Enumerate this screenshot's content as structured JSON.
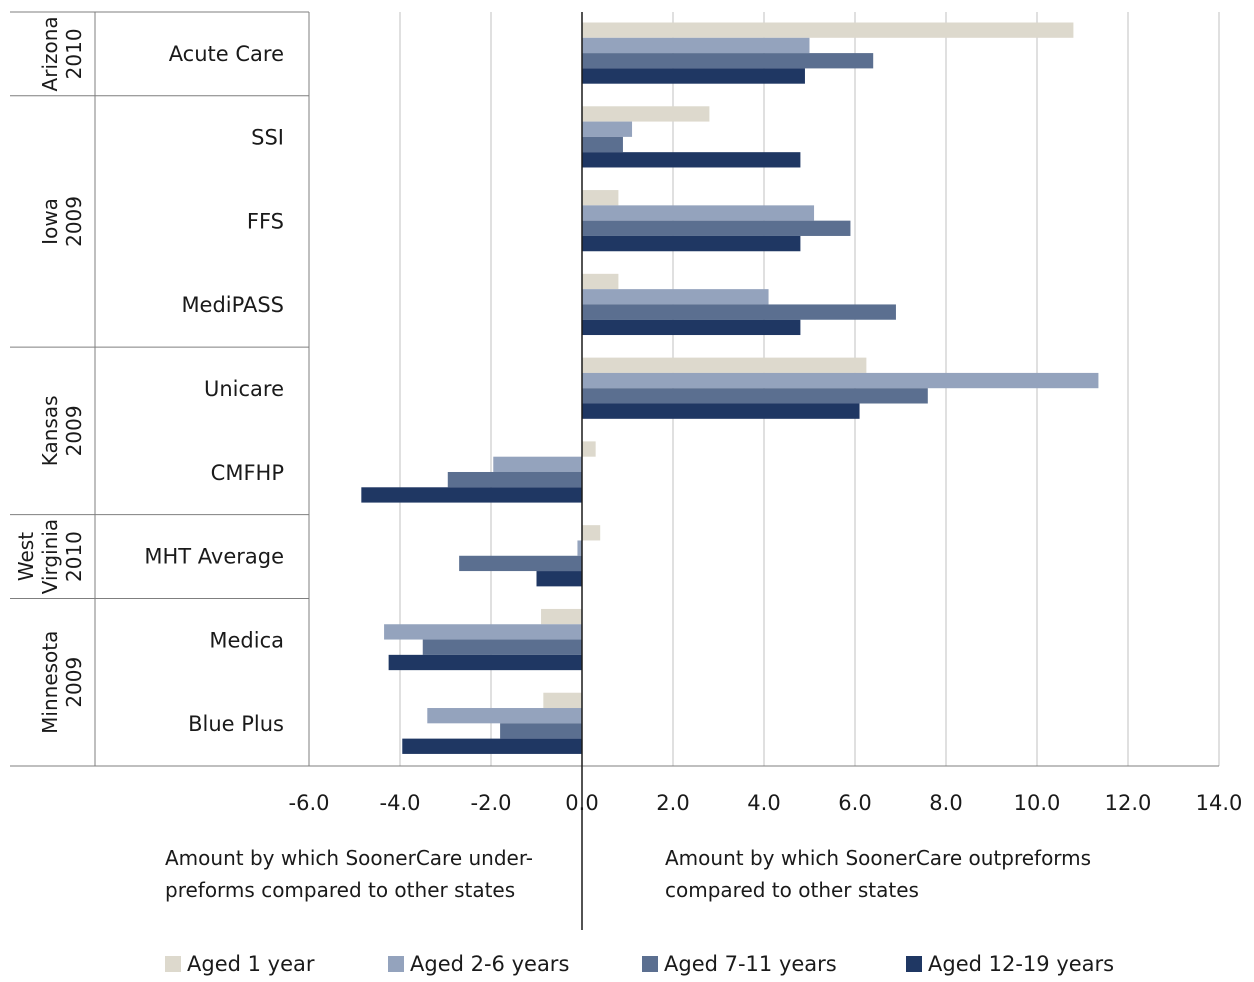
{
  "chart_data": {
    "type": "bar",
    "orientation": "horizontal",
    "xlim": [
      -6,
      14
    ],
    "x_ticks": [
      "-6.0",
      "-4.0",
      "-2.0",
      "0.0",
      "2.0",
      "4.0",
      "6.0",
      "8.0",
      "10.0",
      "12.0",
      "14.0"
    ],
    "grid": true,
    "legend_position": "bottom",
    "groups": [
      {
        "label_lines": [
          "Arizona",
          "2010"
        ],
        "categories": [
          "Acute Care"
        ]
      },
      {
        "label_lines": [
          "Iowa",
          "2009"
        ],
        "categories": [
          "SSI",
          "FFS",
          "MediPASS"
        ]
      },
      {
        "label_lines": [
          "Kansas",
          "2009"
        ],
        "categories": [
          "Unicare",
          "CMFHP"
        ]
      },
      {
        "label_lines": [
          "West",
          "Virginia",
          "2010"
        ],
        "categories": [
          "MHT Average"
        ]
      },
      {
        "label_lines": [
          "Minnesota",
          "2009"
        ],
        "categories": [
          "Medica",
          "Blue Plus"
        ]
      }
    ],
    "categories": [
      "Acute Care",
      "SSI",
      "FFS",
      "MediPASS",
      "Unicare",
      "CMFHP",
      "MHT Average",
      "Medica",
      "Blue Plus"
    ],
    "series": [
      {
        "name": "Aged 1 year",
        "color": "#ddd9cd",
        "values": [
          10.8,
          2.8,
          0.8,
          0.8,
          6.25,
          0.3,
          0.4,
          -0.9,
          -0.85
        ]
      },
      {
        "name": "Aged 2-6 years",
        "color": "#94a3bd",
        "values": [
          5.0,
          1.1,
          5.1,
          4.1,
          11.35,
          -1.95,
          -0.1,
          -4.35,
          -3.4
        ]
      },
      {
        "name": "Aged 7-11 years",
        "color": "#5b6f90",
        "values": [
          6.4,
          0.9,
          5.9,
          6.9,
          7.6,
          -2.95,
          -2.7,
          -3.5,
          -1.8
        ]
      },
      {
        "name": "Aged 12-19 years",
        "color": "#1f3763",
        "values": [
          4.9,
          4.8,
          4.8,
          4.8,
          6.1,
          -4.85,
          -1.0,
          -4.25,
          -3.95
        ]
      }
    ],
    "annotations": {
      "left": [
        "Amount by which SoonerCare under-",
        "preforms compared to other states"
      ],
      "right": [
        "Amount by which SoonerCare outpreforms",
        "compared to other states"
      ]
    }
  }
}
